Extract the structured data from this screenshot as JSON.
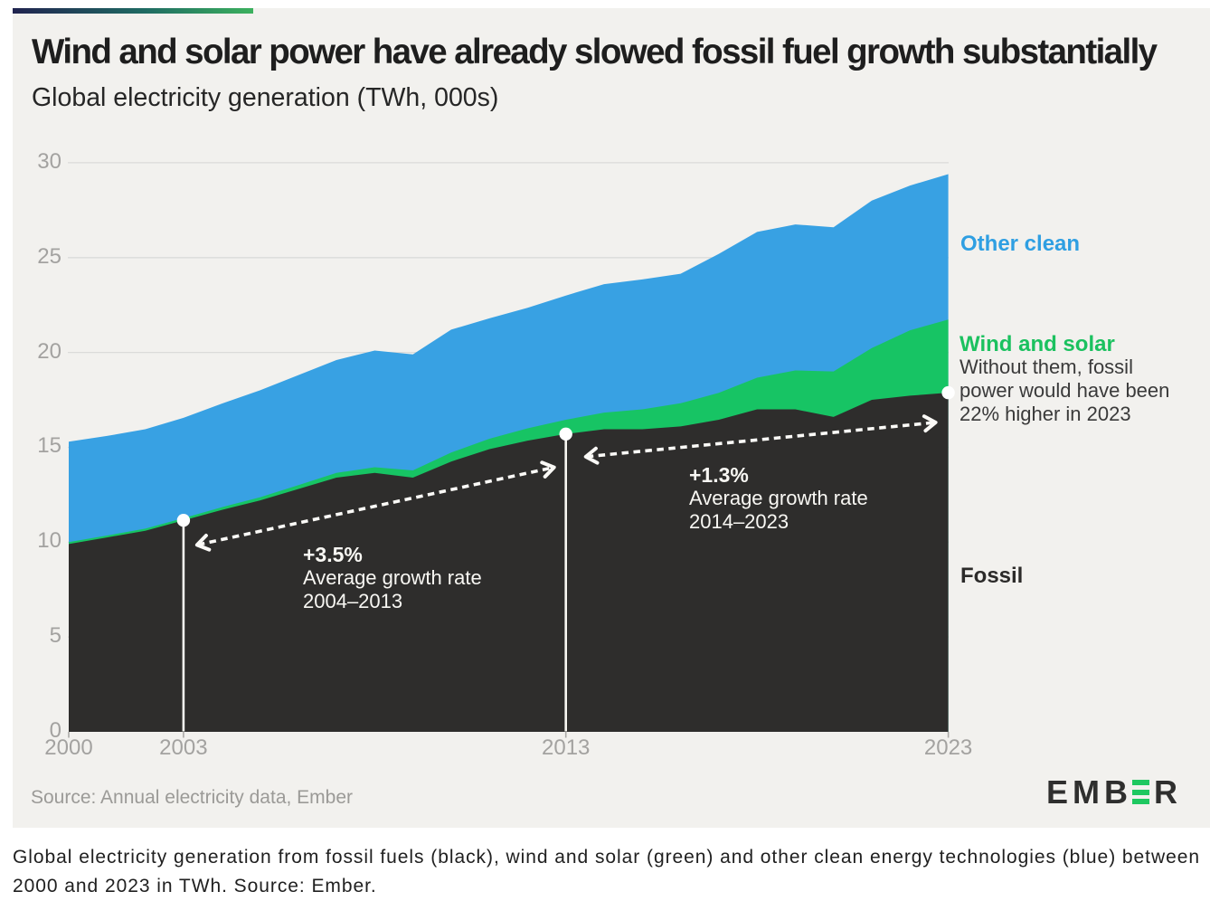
{
  "header": {
    "title": "Wind and solar power have already slowed fossil fuel growth substantially",
    "subtitle": "Global electricity generation (TWh, 000s)"
  },
  "chart_data": {
    "type": "area",
    "stacked": true,
    "title": "Wind and solar power have already slowed fossil fuel growth substantially",
    "subtitle": "Global electricity generation (TWh, 000s)",
    "xlabel": "",
    "ylabel": "Global electricity generation (TWh, 000s)",
    "ylim": [
      0,
      30
    ],
    "grid": "horizontal",
    "x": [
      2000,
      2001,
      2002,
      2003,
      2004,
      2005,
      2006,
      2007,
      2008,
      2009,
      2010,
      2011,
      2012,
      2013,
      2014,
      2015,
      2016,
      2017,
      2018,
      2019,
      2020,
      2021,
      2022,
      2023
    ],
    "series": [
      {
        "name": "Fossil",
        "color": "#2e2d2c",
        "values": [
          9.9,
          10.25,
          10.6,
          11.15,
          11.7,
          12.2,
          12.8,
          13.4,
          13.65,
          13.4,
          14.25,
          14.9,
          15.35,
          15.7,
          15.95,
          15.95,
          16.1,
          16.45,
          17.0,
          17.0,
          16.6,
          17.5,
          17.72,
          17.88
        ]
      },
      {
        "name": "Wind and solar",
        "color": "#17c464",
        "values": [
          0.1,
          0.1,
          0.11,
          0.12,
          0.14,
          0.16,
          0.2,
          0.25,
          0.3,
          0.38,
          0.47,
          0.55,
          0.65,
          0.75,
          0.88,
          1.05,
          1.22,
          1.42,
          1.67,
          2.05,
          2.4,
          2.73,
          3.45,
          3.85
        ]
      },
      {
        "name": "Other clean",
        "color": "#38a1e3",
        "values": [
          5.3,
          5.25,
          5.24,
          5.28,
          5.46,
          5.64,
          5.8,
          5.95,
          6.15,
          6.12,
          6.48,
          6.35,
          6.35,
          6.55,
          6.77,
          6.85,
          6.83,
          7.33,
          7.68,
          7.7,
          7.6,
          7.77,
          7.63,
          7.67
        ]
      }
    ],
    "y_ticks": [
      0,
      5,
      10,
      15,
      20,
      25,
      30
    ],
    "x_ticks": [
      2000,
      2003,
      2013,
      2023
    ],
    "markers": [
      {
        "year": 2003,
        "series": "Fossil",
        "value": 11.15,
        "line": true
      },
      {
        "year": 2013,
        "series": "Fossil",
        "value": 15.7,
        "line": true
      },
      {
        "year": 2023,
        "series": "Fossil",
        "value": 17.88,
        "line": false
      }
    ],
    "annotations": {
      "arrow1": {
        "pct": "+3.5%",
        "line2": "Average growth rate",
        "line3": "2004–2013",
        "from_year": 2003,
        "to_year": 2013
      },
      "arrow2": {
        "pct": "+1.3%",
        "line2": "Average growth rate",
        "line3": "2014–2023",
        "from_year": 2013,
        "to_year": 2023
      }
    },
    "labels": {
      "other_clean": "Other clean",
      "wind_solar": "Wind and solar",
      "fossil": "Fossil"
    },
    "note": {
      "line1": "Without them, fossil",
      "line2": "power would have been",
      "line3": "22% higher in 2023"
    },
    "legend_position": "right"
  },
  "footer": {
    "source": "Source: Annual electricity data, Ember",
    "logo": {
      "e": "E",
      "m": "M",
      "b": "B",
      "r": "R"
    }
  },
  "caption": {
    "line1": "Global electricity generation from fossil fuels (black), wind and solar (green) and other clean energy technologies (blue) between",
    "line2": "2000 and 2023 in TWh. Source: Ember."
  }
}
